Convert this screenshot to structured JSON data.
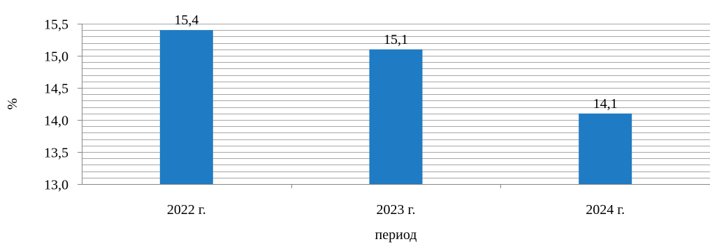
{
  "chart_data": {
    "type": "bar",
    "categories": [
      "2022 г.",
      "2023 г.",
      "2024 г."
    ],
    "series": [
      {
        "values": [
          15.4,
          15.1,
          14.1
        ],
        "value_labels": [
          "15,4",
          "15,1",
          "14,1"
        ],
        "color": "#1F7BC3"
      }
    ],
    "xlabel": "период",
    "ylabel": "%",
    "ylim": [
      13.0,
      15.5
    ],
    "y_major_ticks": [
      13.0,
      13.5,
      14.0,
      14.5,
      15.0,
      15.5
    ],
    "y_tick_labels": [
      "13,0",
      "13,5",
      "14,0",
      "14,5",
      "15,0",
      "15,5"
    ],
    "minor_grid_step": 0.1,
    "grid": true,
    "legend": "none",
    "colors": {
      "bar": "#1F7BC3",
      "grid": "#A6A6A6",
      "axis": "#868686"
    }
  }
}
